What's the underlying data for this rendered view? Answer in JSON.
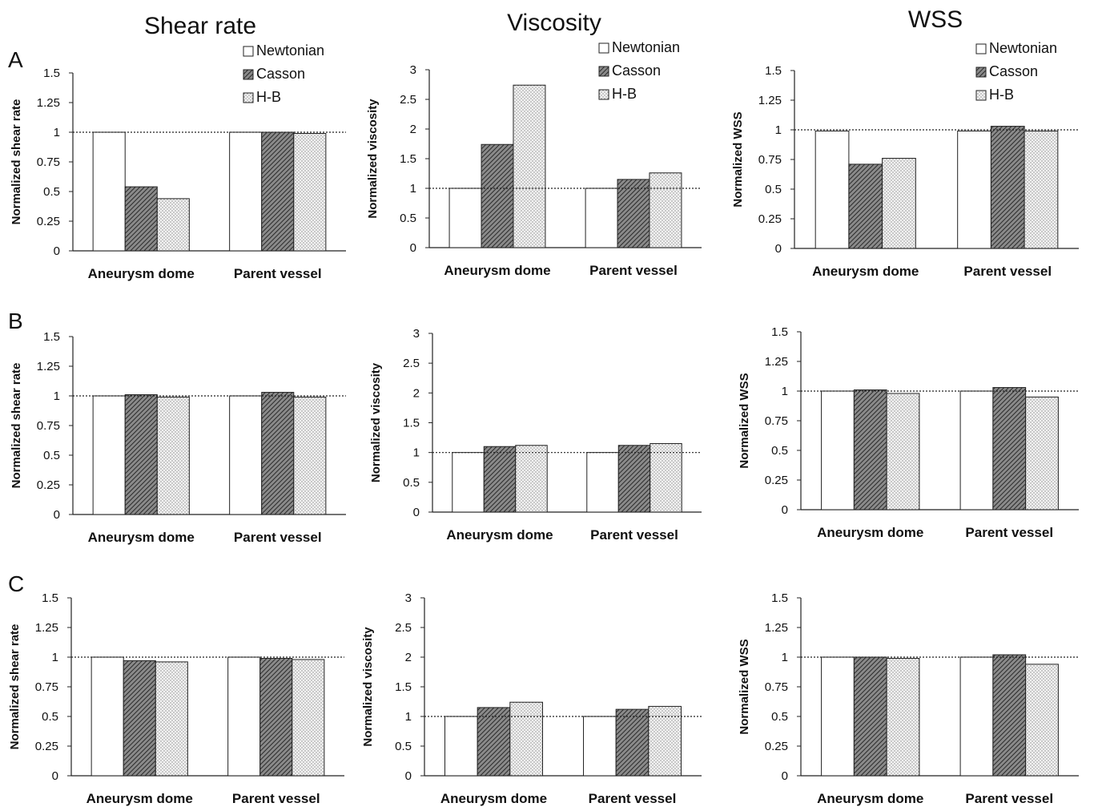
{
  "columns": [
    "Shear rate",
    "Viscosity",
    "WSS"
  ],
  "rows": [
    "A",
    "B",
    "C"
  ],
  "legend": [
    "Newtonian",
    "Casson",
    "H-B"
  ],
  "fills": {
    "Newtonian": "#ffffff",
    "Casson": "#5a5a5a",
    "H-B": "#d8d8d8",
    "stroke": "#222222"
  },
  "chart_data": [
    {
      "type": "bar",
      "row": "A",
      "column": "Shear rate",
      "ylabel": "Normalized shear rate",
      "ylim": [
        0,
        1.5
      ],
      "ticks": [
        "0",
        "0.25",
        "0.5",
        "0.75",
        "1",
        "1.25",
        "1.5"
      ],
      "categories": [
        "Aneurysm dome",
        "Parent vessel"
      ],
      "reference_line": 1,
      "legend": true,
      "series": [
        {
          "name": "Newtonian",
          "values": [
            1.0,
            1.0
          ]
        },
        {
          "name": "Casson",
          "values": [
            0.54,
            1.0
          ]
        },
        {
          "name": "H-B",
          "values": [
            0.44,
            0.99
          ]
        }
      ]
    },
    {
      "type": "bar",
      "row": "A",
      "column": "Viscosity",
      "ylabel": "Normalized viscosity",
      "ylim": [
        0,
        3
      ],
      "ticks": [
        "0",
        "0.5",
        "1",
        "1.5",
        "2",
        "2.5",
        "3"
      ],
      "categories": [
        "Aneurysm dome",
        "Parent vessel"
      ],
      "reference_line": 1,
      "legend": true,
      "series": [
        {
          "name": "Newtonian",
          "values": [
            1.0,
            1.0
          ]
        },
        {
          "name": "Casson",
          "values": [
            1.74,
            1.15
          ]
        },
        {
          "name": "H-B",
          "values": [
            2.74,
            1.26
          ]
        }
      ]
    },
    {
      "type": "bar",
      "row": "A",
      "column": "WSS",
      "ylabel": "Normalized WSS",
      "ylim": [
        0,
        1.5
      ],
      "ticks": [
        "0",
        "0.25",
        "0.5",
        "0.75",
        "1",
        "1.25",
        "1.5"
      ],
      "categories": [
        "Aneurysm dome",
        "Parent vessel"
      ],
      "reference_line": 1,
      "legend": true,
      "series": [
        {
          "name": "Newtonian",
          "values": [
            0.99,
            0.99
          ]
        },
        {
          "name": "Casson",
          "values": [
            0.71,
            1.03
          ]
        },
        {
          "name": "H-B",
          "values": [
            0.76,
            0.99
          ]
        }
      ]
    },
    {
      "type": "bar",
      "row": "B",
      "column": "Shear rate",
      "ylabel": "Normalized shear rate",
      "ylim": [
        0,
        1.5
      ],
      "ticks": [
        "0",
        "0.25",
        "0.5",
        "0.75",
        "1",
        "1.25",
        "1.5"
      ],
      "categories": [
        "Aneurysm dome",
        "Parent vessel"
      ],
      "reference_line": 1,
      "legend": false,
      "series": [
        {
          "name": "Newtonian",
          "values": [
            1.0,
            1.0
          ]
        },
        {
          "name": "Casson",
          "values": [
            1.01,
            1.03
          ]
        },
        {
          "name": "H-B",
          "values": [
            0.99,
            0.99
          ]
        }
      ]
    },
    {
      "type": "bar",
      "row": "B",
      "column": "Viscosity",
      "ylabel": "Normalized viscosity",
      "ylim": [
        0,
        3
      ],
      "ticks": [
        "0",
        "0.5",
        "1",
        "1.5",
        "2",
        "2.5",
        "3"
      ],
      "categories": [
        "Aneurysm dome",
        "Parent vessel"
      ],
      "reference_line": 1,
      "legend": false,
      "series": [
        {
          "name": "Newtonian",
          "values": [
            1.0,
            1.0
          ]
        },
        {
          "name": "Casson",
          "values": [
            1.1,
            1.12
          ]
        },
        {
          "name": "H-B",
          "values": [
            1.12,
            1.15
          ]
        }
      ]
    },
    {
      "type": "bar",
      "row": "B",
      "column": "WSS",
      "ylabel": "Normalized WSS",
      "ylim": [
        0,
        1.5
      ],
      "ticks": [
        "0",
        "0.25",
        "0.5",
        "0.75",
        "1",
        "1.25",
        "1.5"
      ],
      "categories": [
        "Aneurysm dome",
        "Parent vessel"
      ],
      "reference_line": 1,
      "legend": false,
      "series": [
        {
          "name": "Newtonian",
          "values": [
            1.0,
            1.0
          ]
        },
        {
          "name": "Casson",
          "values": [
            1.01,
            1.03
          ]
        },
        {
          "name": "H-B",
          "values": [
            0.98,
            0.95
          ]
        }
      ]
    },
    {
      "type": "bar",
      "row": "C",
      "column": "Shear rate",
      "ylabel": "Normalized shear rate",
      "ylim": [
        0,
        1.5
      ],
      "ticks": [
        "0",
        "0.25",
        "0.5",
        "0.75",
        "1",
        "1.25",
        "1.5"
      ],
      "categories": [
        "Aneurysm dome",
        "Parent vessel"
      ],
      "reference_line": 1,
      "legend": false,
      "series": [
        {
          "name": "Newtonian",
          "values": [
            1.0,
            1.0
          ]
        },
        {
          "name": "Casson",
          "values": [
            0.97,
            0.99
          ]
        },
        {
          "name": "H-B",
          "values": [
            0.96,
            0.98
          ]
        }
      ]
    },
    {
      "type": "bar",
      "row": "C",
      "column": "Viscosity",
      "ylabel": "Normalized viscosity",
      "ylim": [
        0,
        3
      ],
      "ticks": [
        "0",
        "0.5",
        "1",
        "1.5",
        "2",
        "2.5",
        "3"
      ],
      "categories": [
        "Aneurysm dome",
        "Parent vessel"
      ],
      "reference_line": 1,
      "legend": false,
      "series": [
        {
          "name": "Newtonian",
          "values": [
            1.0,
            1.0
          ]
        },
        {
          "name": "Casson",
          "values": [
            1.15,
            1.12
          ]
        },
        {
          "name": "H-B",
          "values": [
            1.24,
            1.17
          ]
        }
      ]
    },
    {
      "type": "bar",
      "row": "C",
      "column": "WSS",
      "ylabel": "Normalized WSS",
      "ylim": [
        0,
        1.5
      ],
      "ticks": [
        "0",
        "0.25",
        "0.5",
        "0.75",
        "1",
        "1.25",
        "1.5"
      ],
      "categories": [
        "Aneurysm dome",
        "Parent vessel"
      ],
      "reference_line": 1,
      "legend": false,
      "series": [
        {
          "name": "Newtonian",
          "values": [
            1.0,
            1.0
          ]
        },
        {
          "name": "Casson",
          "values": [
            1.0,
            1.02
          ]
        },
        {
          "name": "H-B",
          "values": [
            0.99,
            0.94
          ]
        }
      ]
    }
  ]
}
